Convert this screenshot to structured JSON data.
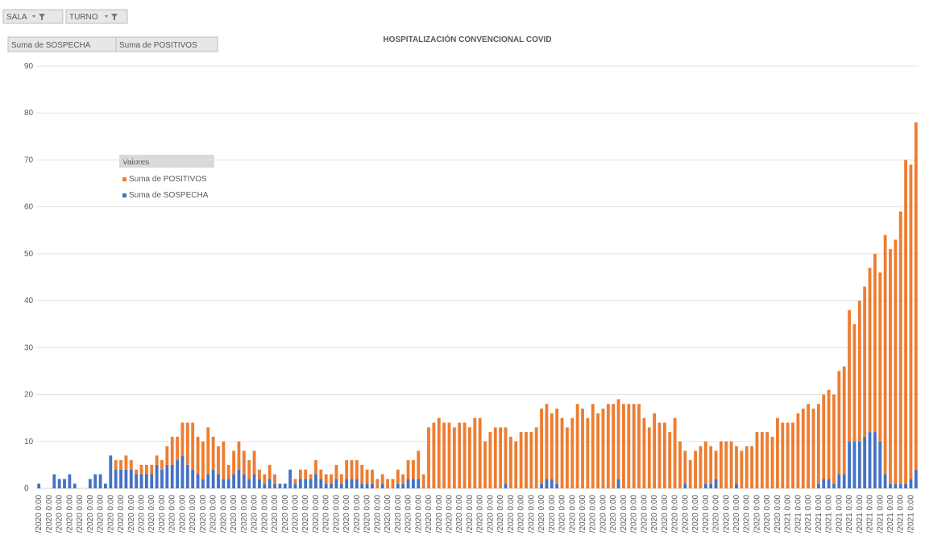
{
  "pivot": {
    "filters": [
      "SALA",
      "TURNO"
    ]
  },
  "chart_data": {
    "type": "bar",
    "stacked": true,
    "title": "HOSPITALIZACIÓN CONVENCIONAL COVID",
    "legend_title": "Valores",
    "ylim": [
      0,
      90
    ],
    "yticks": [
      0,
      10,
      20,
      30,
      40,
      50,
      60,
      70,
      80,
      90
    ],
    "grid": true,
    "categories": [
      "/2020 0:00",
      null,
      "/2020 0:00",
      null,
      "/2020 0:00",
      null,
      "/2020 0:00",
      null,
      "/2020 0:00",
      null,
      "/2020 0:00",
      null,
      "/2020 0:00",
      null,
      "/2020 0:00",
      null,
      "/2020 0:00",
      null,
      "/2020 0:00",
      null,
      "/2020 0:00",
      null,
      "/2020 0:00",
      null,
      "/2020 0:00",
      null,
      "/2020 0:00",
      null,
      "/2020 0:00",
      null,
      "/2020 0:00",
      null,
      "/2020 0:00",
      null,
      "/2020 0:00",
      null,
      "/2020 0:00",
      null,
      "/2020 0:00",
      null,
      "/2020 0:00",
      null,
      "/2020 0:00",
      null,
      "/2020 0:00",
      null,
      "/2020 0:00",
      null,
      "/2020 0:00",
      null,
      "/2020 0:00",
      null,
      "/2020 0:00",
      null,
      "/2020 0:00",
      null,
      "/2020 0:00",
      null,
      "/2020 0:00",
      null,
      "/2020 0:00",
      null,
      "/2020 0:00",
      null,
      "/2020 0:00",
      null,
      "/2020 0:00",
      null,
      "/2020 0:00",
      null,
      "/2020 0:00",
      null,
      "/2020 0:00",
      null,
      "/2020 0:00",
      null,
      "/2020 0:00",
      null,
      "/2020 0:00",
      null,
      "/2020 0:00",
      null,
      "/2020 0:00",
      null,
      "/2020 0:00",
      null,
      "/2020 0:00",
      null,
      "/2020 0:00",
      null,
      "/2020 0:00",
      null,
      "/2020 0:00",
      null,
      "/2020 0:00",
      null,
      "/2020 0:00",
      null,
      "/2020 0:00",
      null,
      "/2020 0:00",
      null,
      "/2020 0:00",
      null,
      "/2020 0:00",
      null,
      "/2020 0:00",
      null,
      "/2020 0:00",
      null,
      "/2020 0:00",
      null,
      "/2020 0:00",
      null,
      "/2020 0:00",
      null,
      "/2020 0:00",
      null,
      "/2020 0:00",
      null,
      "/2020 0:00",
      null,
      "/2020 0:00",
      null,
      "/2020 0:00",
      null,
      "/2020 0:00",
      null,
      "/2020 0:00",
      null,
      "/2020 0:00",
      null,
      "/2020 0:00",
      null,
      "/2020 0:00",
      null,
      "/2020 0:00",
      null,
      "/2020 0:00",
      null,
      "/2020 0:00",
      null,
      "/2020 0:00",
      null,
      "/2020 0:00",
      null,
      "/2021 0:00",
      null,
      "/2021 0:00",
      null,
      "/2021 0:00",
      null,
      "/2021 0:00",
      null,
      "/2021 0:00",
      null,
      "/2021 0:00",
      null,
      "/2021 0:00",
      null,
      "/2021 0:00",
      null,
      "/2021 0:00",
      null,
      "/2021 0:00",
      null,
      "/2021 0:00",
      null,
      "/2021 0:00",
      null,
      "/2021 0:00",
      null
    ],
    "series": [
      {
        "name": "Suma de SOSPECHA",
        "color": "#4472c4",
        "values": [
          1,
          0,
          0,
          3,
          2,
          2,
          3,
          1,
          0,
          0,
          2,
          3,
          3,
          1,
          7,
          4,
          4,
          4,
          4,
          3,
          3,
          3,
          3,
          5,
          4,
          5,
          5,
          6,
          7,
          5,
          4,
          3,
          2,
          3,
          4,
          3,
          2,
          2,
          3,
          4,
          3,
          2,
          3,
          2,
          1,
          2,
          1,
          1,
          1,
          4,
          1,
          2,
          2,
          2,
          3,
          2,
          1,
          1,
          2,
          1,
          2,
          2,
          2,
          1,
          1,
          1,
          0,
          1,
          0,
          0,
          1,
          1,
          2,
          2,
          2,
          0,
          0,
          0,
          0,
          0,
          0,
          0,
          0,
          0,
          0,
          0,
          0,
          0,
          0,
          0,
          0,
          1,
          0,
          0,
          0,
          0,
          0,
          0,
          1,
          2,
          2,
          1,
          0,
          0,
          0,
          0,
          0,
          0,
          0,
          0,
          0,
          0,
          0,
          2,
          0,
          0,
          0,
          0,
          0,
          0,
          0,
          0,
          0,
          0,
          0,
          0,
          1,
          0,
          0,
          0,
          1,
          1,
          2,
          0,
          0,
          0,
          1,
          0,
          0,
          0,
          0,
          0,
          0,
          0,
          0,
          0,
          0,
          0,
          0,
          0,
          0,
          0,
          1,
          2,
          2,
          1,
          3,
          3,
          10,
          10,
          10,
          11,
          12,
          12,
          10,
          3,
          1,
          1,
          1,
          1,
          2,
          4
        ]
      },
      {
        "name": "Suma de POSITIVOS",
        "color": "#ed7d31",
        "values": [
          0,
          0,
          0,
          0,
          0,
          0,
          0,
          0,
          0,
          0,
          0,
          0,
          0,
          0,
          0,
          2,
          2,
          3,
          2,
          1,
          2,
          2,
          2,
          2,
          2,
          4,
          6,
          5,
          7,
          9,
          10,
          8,
          8,
          10,
          7,
          6,
          8,
          3,
          5,
          6,
          5,
          4,
          5,
          2,
          2,
          3,
          2,
          0,
          0,
          0,
          1,
          2,
          2,
          1,
          3,
          2,
          2,
          2,
          3,
          2,
          4,
          4,
          4,
          4,
          3,
          3,
          2,
          2,
          2,
          2,
          3,
          2,
          4,
          4,
          6,
          3,
          13,
          14,
          15,
          14,
          14,
          13,
          14,
          14,
          13,
          15,
          15,
          10,
          12,
          13,
          13,
          12,
          11,
          10,
          12,
          12,
          12,
          13,
          16,
          16,
          14,
          16,
          15,
          13,
          15,
          18,
          17,
          15,
          18,
          16,
          17,
          18,
          18,
          17,
          18,
          18,
          18,
          18,
          15,
          13,
          16,
          14,
          14,
          12,
          15,
          10,
          7,
          6,
          8,
          9,
          9,
          8,
          6,
          10,
          10,
          10,
          8,
          8,
          9,
          9,
          12,
          12,
          12,
          11,
          15,
          14,
          14,
          14,
          16,
          17,
          18,
          17,
          17,
          18,
          19,
          19,
          22,
          23,
          28,
          25,
          30,
          32,
          35,
          38,
          36,
          51,
          50,
          52,
          58,
          69,
          67,
          74
        ]
      }
    ]
  }
}
